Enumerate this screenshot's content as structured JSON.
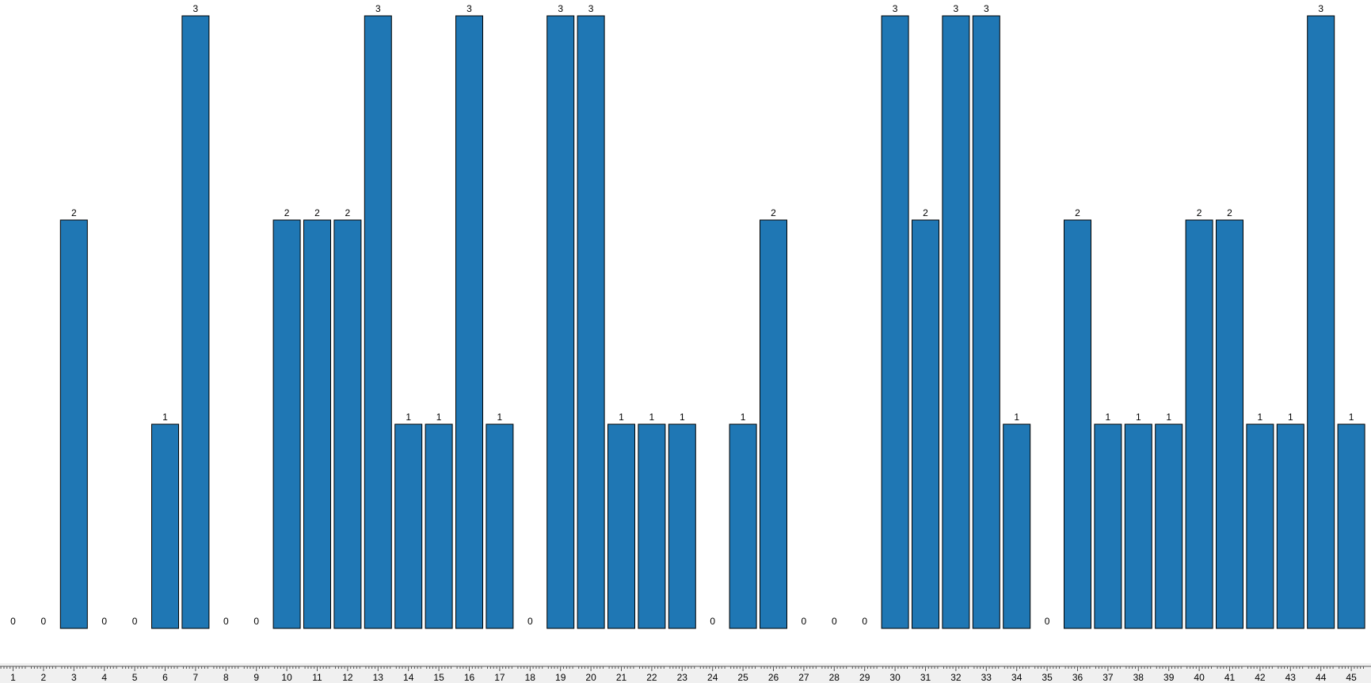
{
  "chart_data": {
    "type": "bar",
    "title": "",
    "xlabel": "",
    "ylabel": "",
    "categories": [
      "1",
      "2",
      "3",
      "4",
      "5",
      "6",
      "7",
      "8",
      "9",
      "10",
      "11",
      "12",
      "13",
      "14",
      "15",
      "16",
      "17",
      "18",
      "19",
      "20",
      "21",
      "22",
      "23",
      "24",
      "25",
      "26",
      "27",
      "28",
      "29",
      "30",
      "31",
      "32",
      "33",
      "34",
      "35",
      "36",
      "37",
      "38",
      "39",
      "40",
      "41",
      "42",
      "43",
      "44",
      "45"
    ],
    "values": [
      0,
      0,
      2,
      0,
      0,
      1,
      3,
      0,
      0,
      2,
      2,
      2,
      3,
      1,
      1,
      3,
      1,
      0,
      3,
      3,
      1,
      1,
      1,
      0,
      1,
      2,
      0,
      0,
      0,
      3,
      2,
      3,
      3,
      1,
      0,
      2,
      1,
      1,
      1,
      2,
      2,
      1,
      1,
      3,
      1
    ],
    "ylim": [
      0,
      3
    ],
    "data_labels": true,
    "grid": false,
    "bar_color": "#1f77b4"
  }
}
